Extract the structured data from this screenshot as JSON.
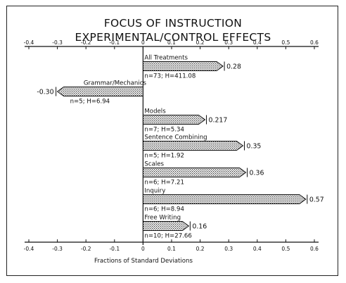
{
  "chart_data": {
    "type": "bar",
    "orientation": "horizontal",
    "title_lines": [
      "FOCUS OF INSTRUCTION",
      "EXPERIMENTAL/CONTROL EFFECTS"
    ],
    "xlabel": "Fractions of Standard Deviations",
    "xlim": [
      -0.4,
      0.6
    ],
    "xticks": [
      "-0.4",
      "-0.3",
      "-0.2",
      "-0.1",
      "0",
      "0.1",
      "0.2",
      "0.3",
      "0.4",
      "0.5",
      "0.6"
    ],
    "xtick_values": [
      -0.4,
      -0.3,
      -0.2,
      -0.1,
      0,
      0.1,
      0.2,
      0.3,
      0.4,
      0.5,
      0.6
    ],
    "bars": [
      {
        "category": "All Treatments",
        "value": 0.28,
        "value_label": "0.28",
        "stats": "n=73; H=411.08"
      },
      {
        "category": "Grammar/Mechanics",
        "value": -0.3,
        "value_label": "-0.30",
        "stats": "n=5; H=6.94"
      },
      {
        "category": "Models",
        "value": 0.217,
        "value_label": "0.217",
        "stats": "n=7; H=5.34"
      },
      {
        "category": "Sentence Combining",
        "value": 0.35,
        "value_label": "0.35",
        "stats": "n=5; H=1.92"
      },
      {
        "category": "Scales",
        "value": 0.36,
        "value_label": "0.36",
        "stats": "n=6; H=7.21"
      },
      {
        "category": "Inquiry",
        "value": 0.57,
        "value_label": "0.57",
        "stats": "n=6; H=8.94"
      },
      {
        "category": "Free Writing",
        "value": 0.16,
        "value_label": "0.16",
        "stats": "n=10; H=27.66"
      }
    ]
  }
}
